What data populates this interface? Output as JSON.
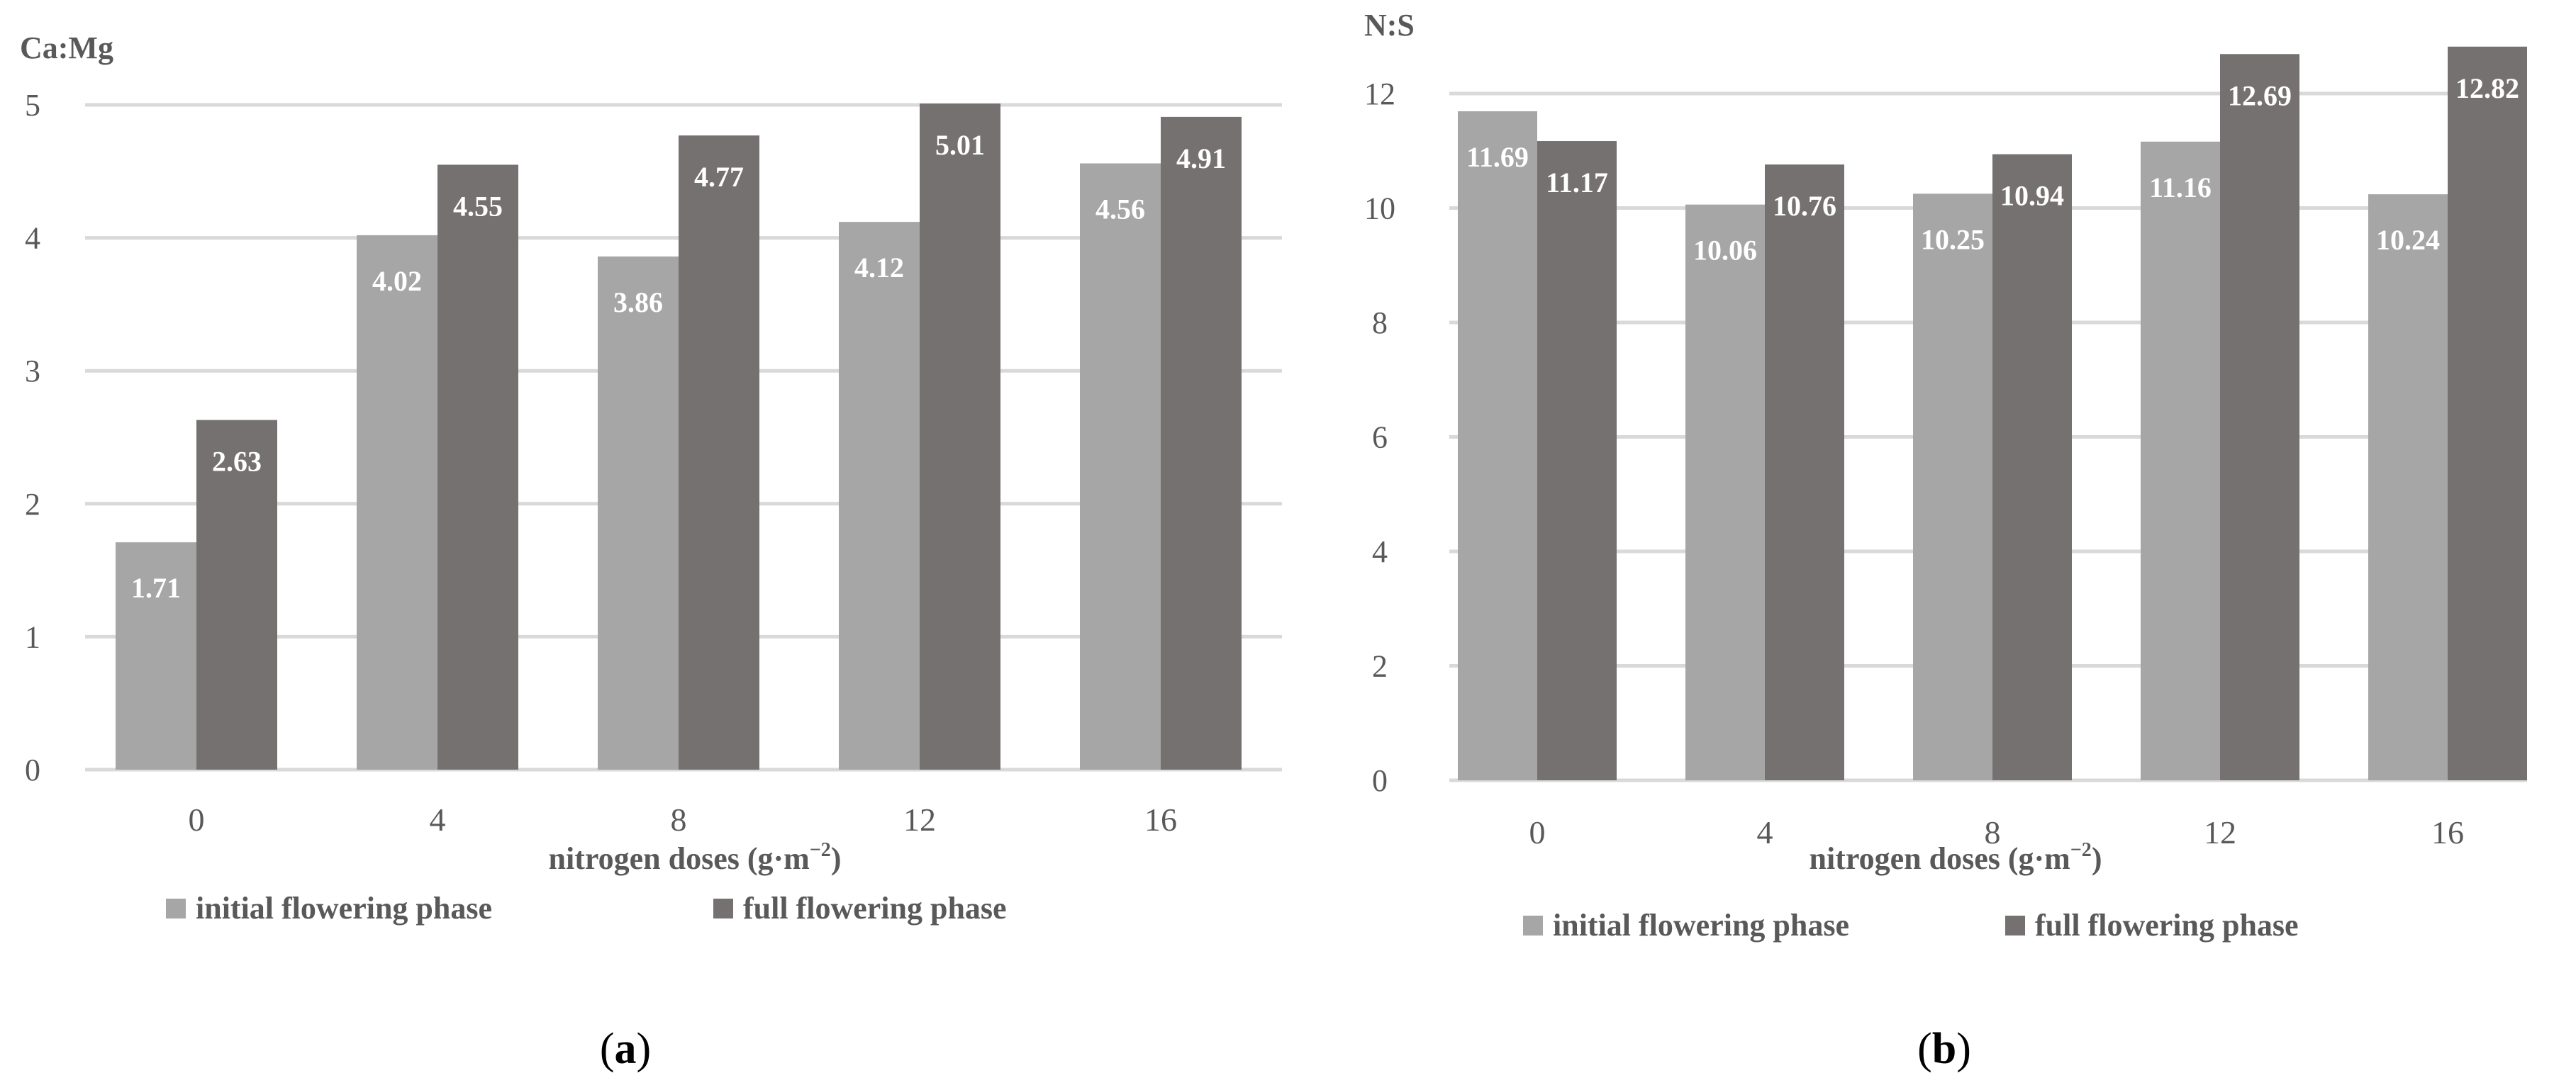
{
  "colors": {
    "initial": "#A6A6A6",
    "full": "#767171",
    "grid": "#D9D9D9",
    "text": "#595959",
    "label": "#FFFFFF",
    "caption": "#000000"
  },
  "chart_data": [
    {
      "type": "bar",
      "ylabel": "Ca:Mg",
      "xlabel": "nitrogen doses (g·m",
      "xlabel_sup": "−2",
      "xlabel_close": ")",
      "categories": [
        "0",
        "4",
        "8",
        "12",
        "16"
      ],
      "ylim": [
        0,
        5
      ],
      "yticks": [
        0,
        1,
        2,
        3,
        4,
        5
      ],
      "ytick_labels": [
        "0",
        "1",
        "2",
        "3",
        "4",
        "5"
      ],
      "series": [
        {
          "name": "initial flowering phase",
          "values": [
            1.71,
            4.02,
            3.86,
            4.12,
            4.56
          ],
          "labels": [
            "1.71",
            "4.02",
            "3.86",
            "4.12",
            "4.56"
          ]
        },
        {
          "name": "full flowering phase",
          "values": [
            2.63,
            4.55,
            4.77,
            5.01,
            4.91
          ],
          "labels": [
            "2.63",
            "4.55",
            "4.77",
            "5.01",
            "4.91"
          ]
        }
      ],
      "caption_open": "(",
      "caption_letter": "a",
      "caption_close": ")",
      "legend_position": "bottom"
    },
    {
      "type": "bar",
      "ylabel": "N:S",
      "xlabel": "nitrogen doses (g·m",
      "xlabel_sup": "−2",
      "xlabel_close": ")",
      "categories": [
        "0",
        "4",
        "8",
        "12",
        "16"
      ],
      "ylim": [
        0,
        12
      ],
      "yticks": [
        0,
        2,
        4,
        6,
        8,
        10,
        12
      ],
      "ytick_labels": [
        "0",
        "2",
        "4",
        "6",
        "8",
        "10",
        "12"
      ],
      "series": [
        {
          "name": "initial flowering phase",
          "values": [
            11.69,
            10.06,
            10.25,
            11.16,
            10.24
          ],
          "labels": [
            "11.69",
            "10.06",
            "10.25",
            "11.16",
            "10.24"
          ]
        },
        {
          "name": "full flowering phase",
          "values": [
            11.17,
            10.76,
            10.94,
            12.69,
            12.82
          ],
          "labels": [
            "11.17",
            "10.76",
            "10.94",
            "12.69",
            "12.82"
          ]
        }
      ],
      "caption_open": "(",
      "caption_letter": "b",
      "caption_close": ")",
      "legend_position": "bottom"
    }
  ]
}
